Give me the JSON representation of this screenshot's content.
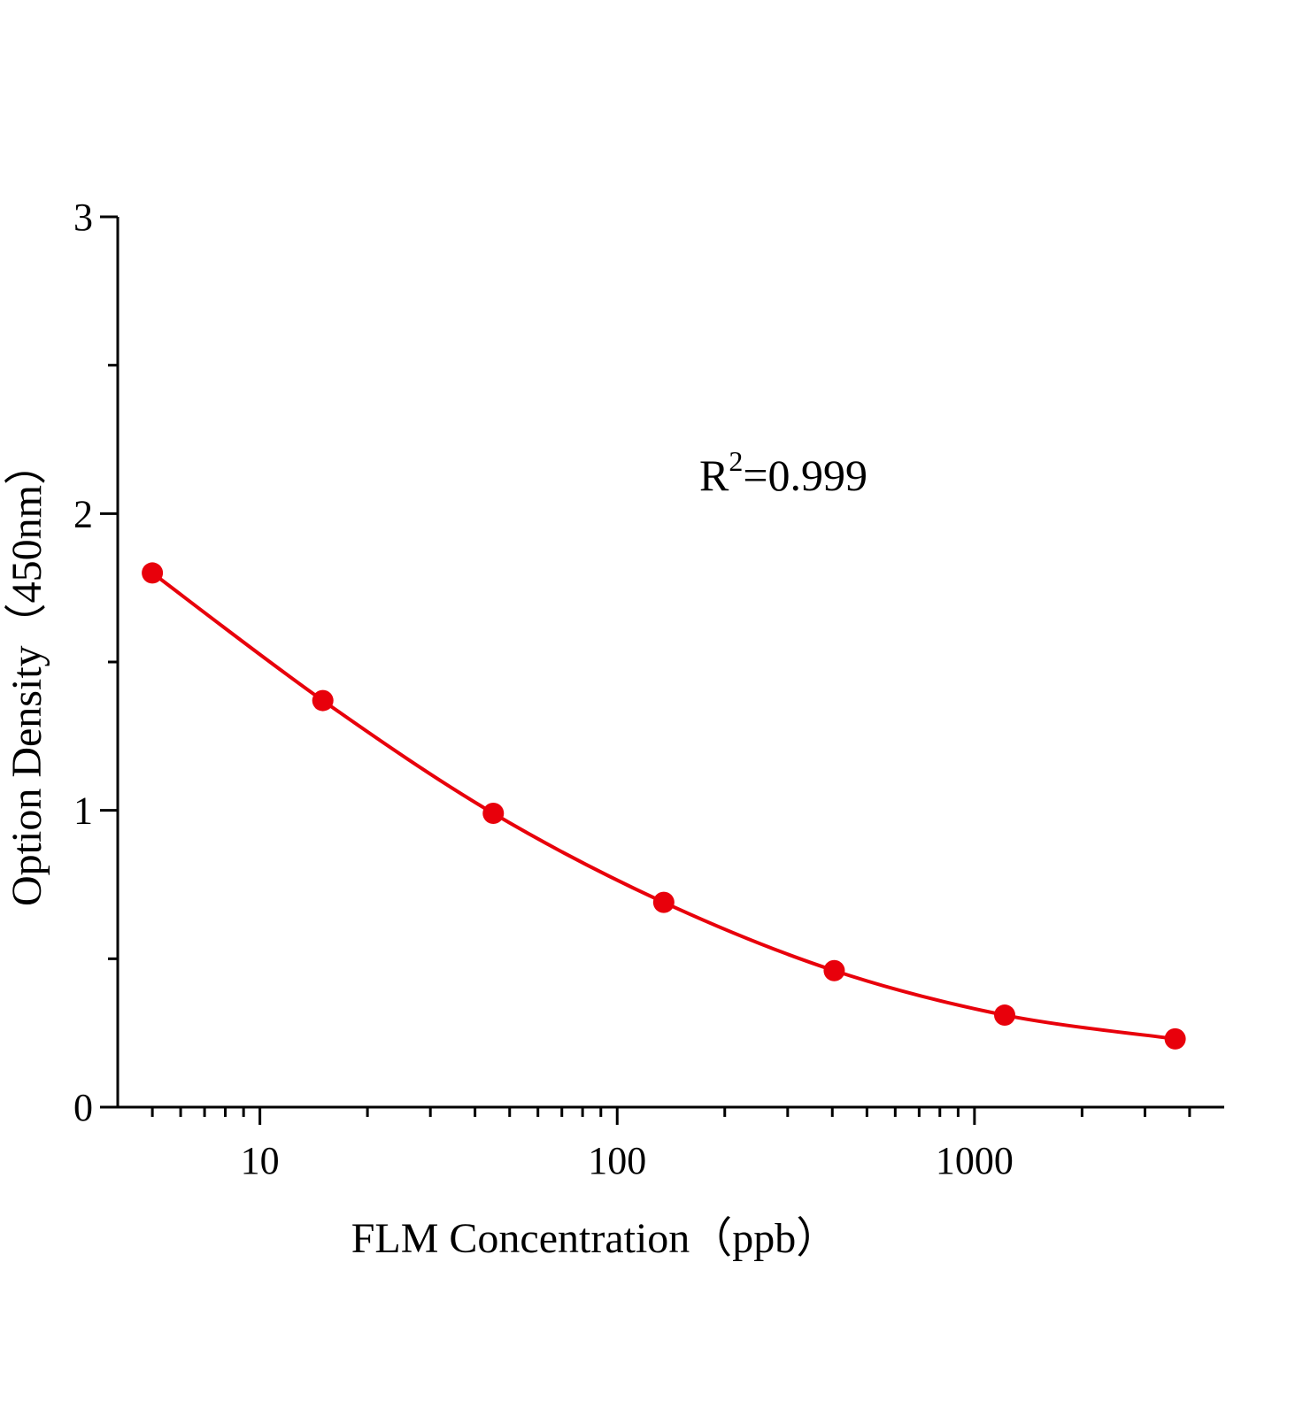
{
  "chart_data": {
    "type": "line",
    "x_label": "FLM  Concentration（ppb）",
    "y_label": "Option Density（450nm）",
    "annotation": {
      "base": "R",
      "sup": "2",
      "rest": "=0.999"
    },
    "x": [
      5,
      15,
      45,
      135,
      405,
      1215,
      3645
    ],
    "series": [
      {
        "color": "#e8000b",
        "values": [
          1.8,
          1.37,
          0.99,
          0.69,
          0.46,
          0.31,
          0.23
        ]
      }
    ],
    "xscale": "log",
    "xlim": [
      4,
      5000
    ],
    "xticks": [
      10,
      100,
      1000
    ],
    "xminorticks": [
      5,
      6,
      7,
      8,
      9,
      20,
      30,
      40,
      50,
      60,
      70,
      80,
      90,
      200,
      300,
      400,
      500,
      600,
      700,
      800,
      900,
      2000,
      3000,
      4000
    ],
    "ylim": [
      0,
      3
    ],
    "yticks": [
      0,
      1,
      2,
      3
    ],
    "yminorticks": [
      0.5,
      1.5,
      2.5
    ]
  }
}
